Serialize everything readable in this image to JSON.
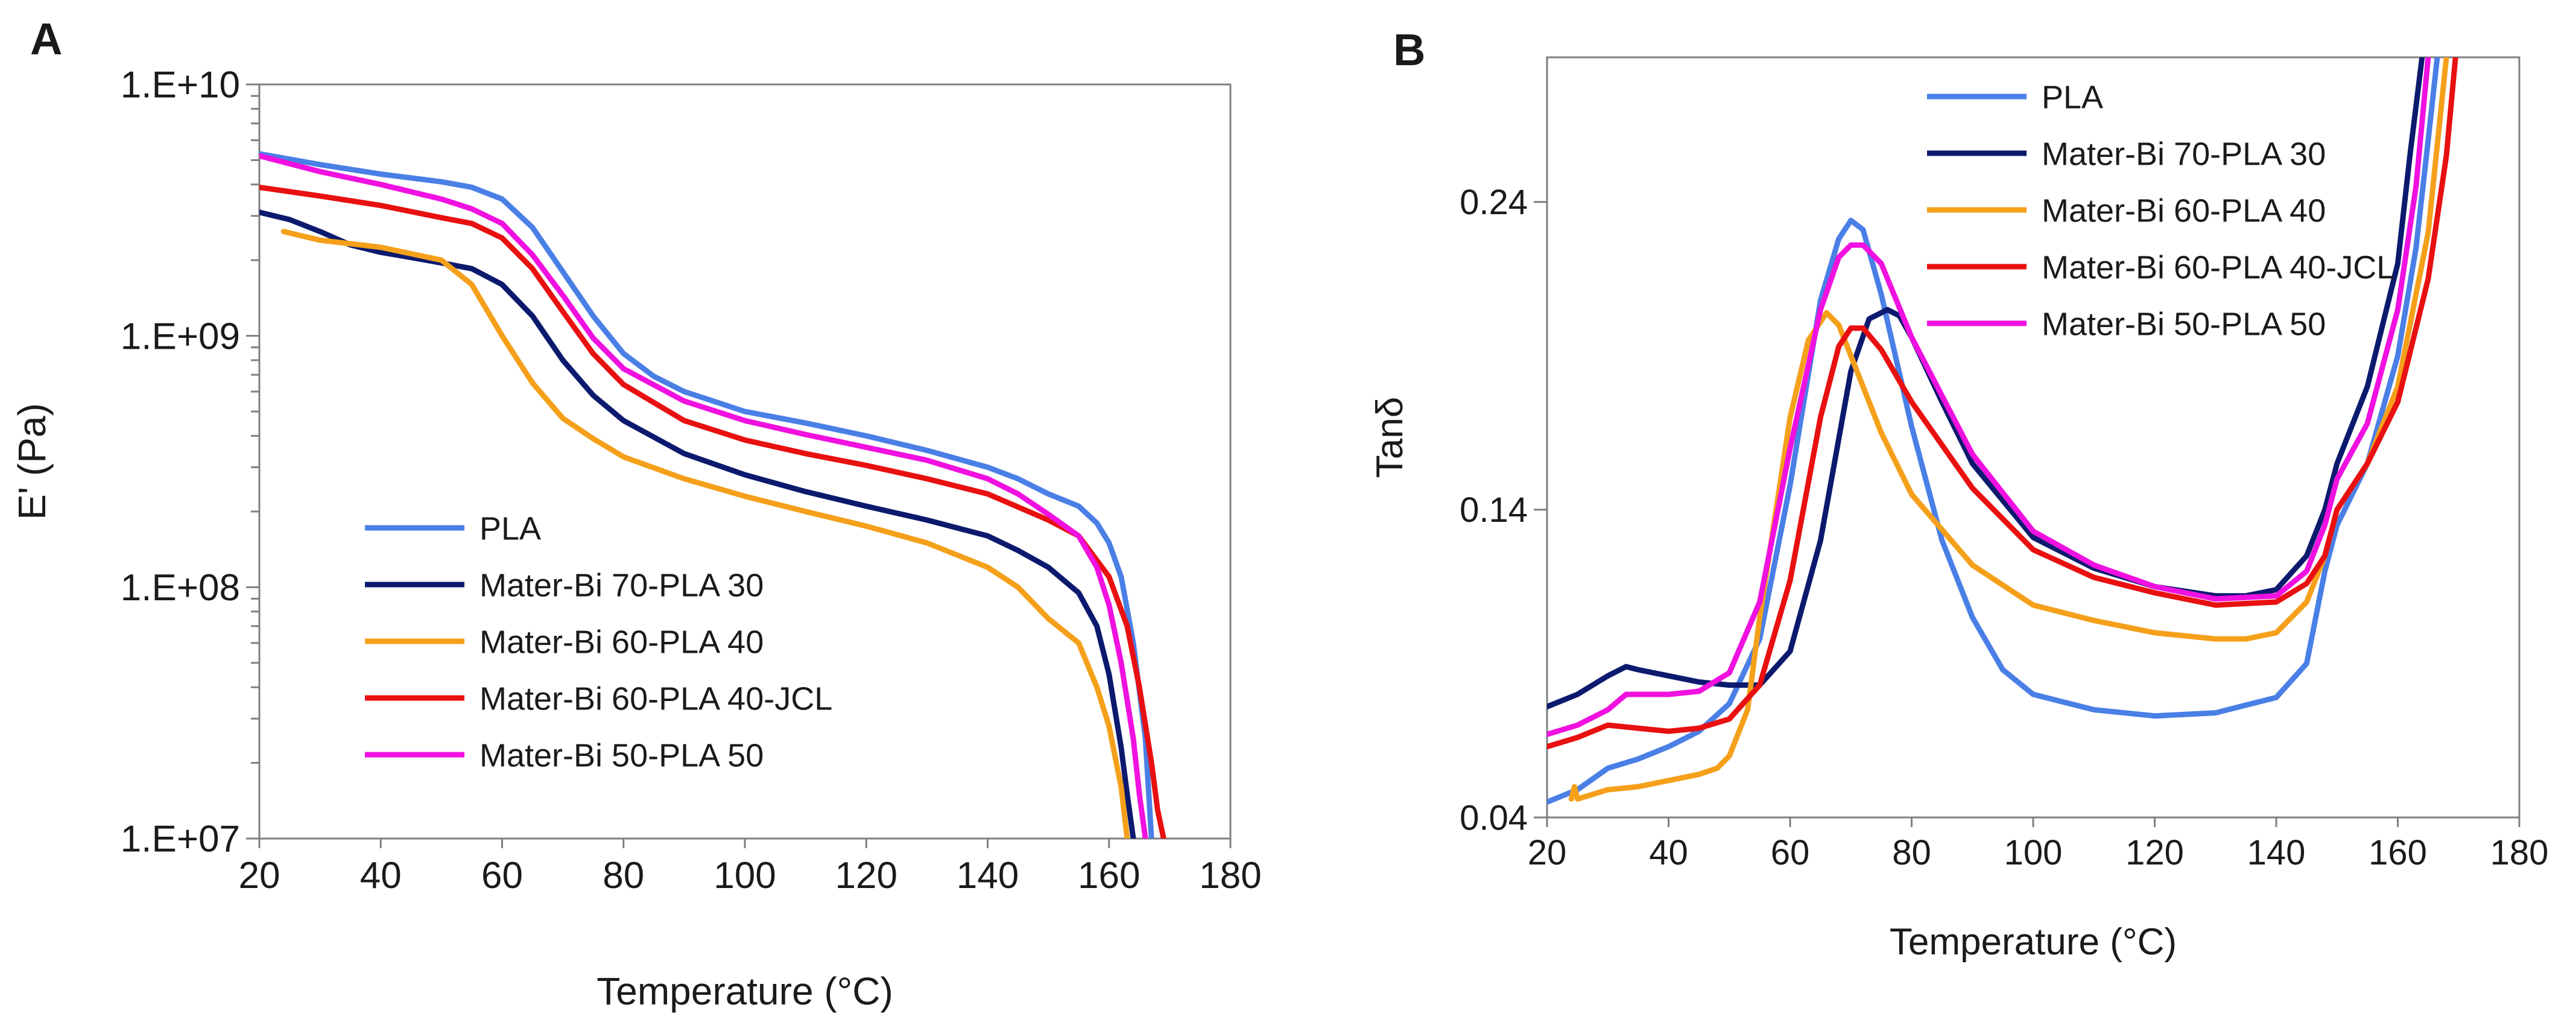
{
  "chart_data": [
    {
      "type": "line",
      "panel_label": "A",
      "title": "",
      "xlabel": "Temperature (°C)",
      "ylabel": "E' (Pa)",
      "yscale": "log",
      "xlim": [
        20,
        180
      ],
      "ylim": [
        10000000,
        10000000000
      ],
      "xticks": [
        20,
        40,
        60,
        80,
        100,
        120,
        140,
        160,
        180
      ],
      "xtick_labels": [
        "20",
        "40",
        "60",
        "80",
        "100",
        "120",
        "140",
        "160",
        "180"
      ],
      "yticks": [
        10000000,
        100000000,
        1000000000,
        10000000000
      ],
      "ytick_labels": [
        "1.E+07",
        "1.E+08",
        "1.E+09",
        "1.E+10"
      ],
      "legend_position": "lower-left",
      "series": [
        {
          "name": "PLA",
          "color": "#4a7fe6",
          "x": [
            20,
            30,
            40,
            50,
            55,
            60,
            65,
            70,
            75,
            80,
            85,
            90,
            100,
            110,
            120,
            130,
            140,
            145,
            150,
            155,
            158,
            160,
            162,
            164,
            166,
            167
          ],
          "y": [
            5300000000.0,
            4800000000.0,
            4400000000.0,
            4100000000.0,
            3900000000.0,
            3500000000.0,
            2700000000.0,
            1800000000.0,
            1200000000.0,
            850000000.0,
            690000000.0,
            600000000.0,
            500000000.0,
            450000000.0,
            400000000.0,
            350000000.0,
            300000000.0,
            270000000.0,
            235000000.0,
            210000000.0,
            180000000.0,
            150000000.0,
            110000000.0,
            60000000.0,
            25000000.0,
            10000000.0
          ]
        },
        {
          "name": "Mater-Bi 70-PLA 30",
          "color": "#0c1a6e",
          "x": [
            20,
            25,
            30,
            35,
            40,
            45,
            50,
            55,
            60,
            65,
            70,
            75,
            80,
            90,
            100,
            110,
            120,
            130,
            140,
            145,
            150,
            155,
            158,
            160,
            162,
            163,
            164
          ],
          "y": [
            3100000000.0,
            2900000000.0,
            2600000000.0,
            2300000000.0,
            2150000000.0,
            2050000000.0,
            1950000000.0,
            1850000000.0,
            1600000000.0,
            1200000000.0,
            800000000.0,
            580000000.0,
            460000000.0,
            340000000.0,
            280000000.0,
            240000000.0,
            210000000.0,
            185000000.0,
            160000000.0,
            140000000.0,
            120000000.0,
            95000000.0,
            70000000.0,
            45000000.0,
            23000000.0,
            15000000.0,
            10000000.0
          ]
        },
        {
          "name": "Mater-Bi 60-PLA 40",
          "color": "#f5a01a",
          "x": [
            24,
            30,
            40,
            50,
            55,
            60,
            65,
            70,
            75,
            80,
            90,
            100,
            110,
            120,
            130,
            140,
            145,
            150,
            155,
            158,
            160,
            162,
            163
          ],
          "y": [
            2600000000.0,
            2400000000.0,
            2250000000.0,
            2000000000.0,
            1600000000.0,
            1000000000.0,
            650000000.0,
            470000000.0,
            390000000.0,
            330000000.0,
            270000000.0,
            230000000.0,
            200000000.0,
            175000000.0,
            150000000.0,
            120000000.0,
            100000000.0,
            75000000.0,
            60000000.0,
            40000000.0,
            28000000.0,
            16000000.0,
            10000000.0
          ]
        },
        {
          "name": "Mater-Bi 60-PLA 40-JCL",
          "color": "#e81010",
          "x": [
            20,
            30,
            40,
            50,
            55,
            60,
            65,
            70,
            75,
            80,
            90,
            100,
            110,
            120,
            130,
            140,
            150,
            155,
            160,
            163,
            165,
            167,
            168,
            169
          ],
          "y": [
            3900000000.0,
            3600000000.0,
            3300000000.0,
            2950000000.0,
            2800000000.0,
            2450000000.0,
            1850000000.0,
            1250000000.0,
            850000000.0,
            640000000.0,
            460000000.0,
            385000000.0,
            340000000.0,
            305000000.0,
            270000000.0,
            235000000.0,
            185000000.0,
            160000000.0,
            110000000.0,
            70000000.0,
            40000000.0,
            20000000.0,
            13000000.0,
            10000000.0
          ]
        },
        {
          "name": "Mater-Bi 50-PLA 50",
          "color": "#f011e0",
          "x": [
            20,
            30,
            40,
            50,
            55,
            60,
            65,
            70,
            75,
            80,
            90,
            100,
            110,
            120,
            130,
            140,
            145,
            150,
            155,
            158,
            160,
            162,
            164,
            165,
            166
          ],
          "y": [
            5200000000.0,
            4500000000.0,
            4000000000.0,
            3500000000.0,
            3200000000.0,
            2800000000.0,
            2100000000.0,
            1450000000.0,
            980000000.0,
            740000000.0,
            550000000.0,
            460000000.0,
            405000000.0,
            360000000.0,
            320000000.0,
            270000000.0,
            235000000.0,
            195000000.0,
            160000000.0,
            120000000.0,
            85000000.0,
            50000000.0,
            25000000.0,
            15000000.0,
            10000000.0
          ]
        }
      ]
    },
    {
      "type": "line",
      "panel_label": "B",
      "title": "",
      "xlabel": "Temperature (°C)",
      "ylabel": "Tanδ",
      "yscale": "linear",
      "xlim": [
        20,
        180
      ],
      "ylim": [
        0.04,
        0.287
      ],
      "xticks": [
        20,
        40,
        60,
        80,
        100,
        120,
        140,
        160,
        180
      ],
      "xtick_labels": [
        "20",
        "40",
        "60",
        "80",
        "100",
        "120",
        "140",
        "160",
        "180"
      ],
      "yticks": [
        0.04,
        0.14,
        0.24
      ],
      "ytick_labels": [
        "0.04",
        "0.14",
        "0.24"
      ],
      "legend_position": "top-right",
      "series": [
        {
          "name": "PLA",
          "color": "#4a7fe6",
          "x": [
            20,
            25,
            30,
            35,
            40,
            45,
            50,
            55,
            60,
            65,
            68,
            70,
            72,
            75,
            80,
            85,
            90,
            95,
            100,
            110,
            120,
            130,
            140,
            145,
            148,
            150,
            155,
            160,
            163,
            165,
            166.5
          ],
          "y": [
            0.045,
            0.049,
            0.056,
            0.059,
            0.063,
            0.068,
            0.077,
            0.098,
            0.148,
            0.208,
            0.228,
            0.234,
            0.231,
            0.21,
            0.167,
            0.13,
            0.105,
            0.088,
            0.08,
            0.075,
            0.073,
            0.074,
            0.079,
            0.09,
            0.12,
            0.135,
            0.155,
            0.19,
            0.225,
            0.26,
            0.287
          ]
        },
        {
          "name": "Mater-Bi 70-PLA 30",
          "color": "#0c1a6e",
          "x": [
            20,
            25,
            30,
            33,
            35,
            40,
            45,
            50,
            55,
            60,
            65,
            70,
            73,
            76,
            78,
            80,
            85,
            90,
            100,
            110,
            120,
            130,
            135,
            140,
            145,
            148,
            150,
            155,
            160,
            162,
            164
          ],
          "y": [
            0.076,
            0.08,
            0.086,
            0.089,
            0.088,
            0.086,
            0.084,
            0.083,
            0.083,
            0.094,
            0.13,
            0.185,
            0.202,
            0.205,
            0.203,
            0.196,
            0.175,
            0.155,
            0.131,
            0.121,
            0.115,
            0.112,
            0.112,
            0.114,
            0.125,
            0.14,
            0.155,
            0.18,
            0.22,
            0.255,
            0.287
          ]
        },
        {
          "name": "Mater-Bi 60-PLA 40",
          "color": "#f5a01a",
          "x": [
            24,
            24.5,
            25,
            30,
            35,
            40,
            45,
            48,
            50,
            53,
            55,
            60,
            63,
            66,
            68,
            70,
            75,
            80,
            90,
            100,
            110,
            120,
            130,
            135,
            140,
            145,
            148,
            150,
            155,
            160,
            165,
            168
          ],
          "y": [
            0.046,
            0.05,
            0.046,
            0.049,
            0.05,
            0.052,
            0.054,
            0.056,
            0.06,
            0.075,
            0.105,
            0.17,
            0.195,
            0.204,
            0.2,
            0.19,
            0.165,
            0.145,
            0.122,
            0.109,
            0.104,
            0.1,
            0.098,
            0.098,
            0.1,
            0.11,
            0.125,
            0.14,
            0.155,
            0.18,
            0.23,
            0.287
          ]
        },
        {
          "name": "Mater-Bi 60-PLA 40-JCL",
          "color": "#e81010",
          "x": [
            20,
            25,
            30,
            35,
            40,
            45,
            50,
            55,
            60,
            65,
            68,
            70,
            72,
            75,
            80,
            90,
            100,
            110,
            120,
            130,
            140,
            145,
            148,
            150,
            155,
            160,
            165,
            168,
            169.5
          ],
          "y": [
            0.063,
            0.066,
            0.07,
            0.069,
            0.068,
            0.069,
            0.072,
            0.083,
            0.117,
            0.17,
            0.193,
            0.199,
            0.199,
            0.192,
            0.175,
            0.147,
            0.127,
            0.118,
            0.113,
            0.109,
            0.11,
            0.116,
            0.125,
            0.14,
            0.155,
            0.175,
            0.215,
            0.255,
            0.287
          ]
        },
        {
          "name": "Mater-Bi 50-PLA 50",
          "color": "#f011e0",
          "x": [
            20,
            25,
            30,
            33,
            35,
            40,
            45,
            50,
            55,
            60,
            65,
            68,
            70,
            72,
            75,
            80,
            90,
            100,
            110,
            120,
            130,
            140,
            145,
            148,
            150,
            155,
            160,
            163,
            165
          ],
          "y": [
            0.067,
            0.07,
            0.075,
            0.08,
            0.08,
            0.08,
            0.081,
            0.087,
            0.11,
            0.16,
            0.205,
            0.222,
            0.226,
            0.226,
            0.22,
            0.196,
            0.158,
            0.133,
            0.122,
            0.115,
            0.111,
            0.112,
            0.12,
            0.135,
            0.15,
            0.168,
            0.205,
            0.245,
            0.287
          ]
        }
      ]
    }
  ]
}
